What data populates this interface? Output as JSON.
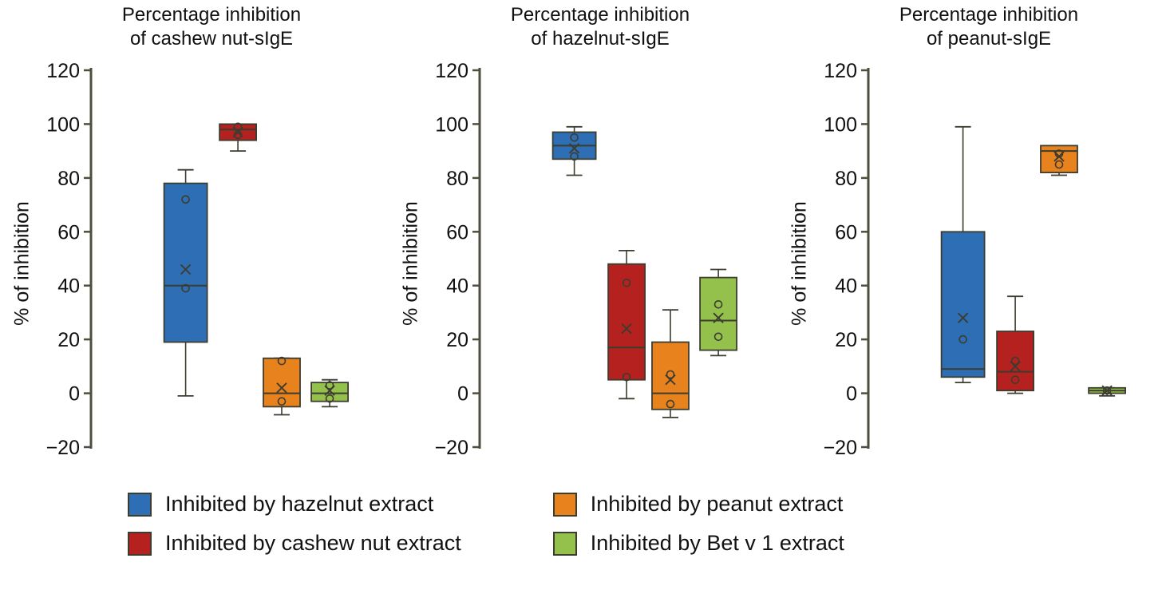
{
  "colors": {
    "axis": "#4e4e3e",
    "box_stroke": "#3c3c30",
    "marker": "#3c3c30",
    "tick_text": "#111111"
  },
  "legend": {
    "items": [
      {
        "label": "Inhibited by hazelnut extract",
        "color": "#2d6eb5"
      },
      {
        "label": "Inhibited by peanut extract",
        "color": "#e8821d"
      },
      {
        "label": "Inhibited by cashew nut extract",
        "color": "#b5211f"
      },
      {
        "label": "Inhibited by Bet v 1 extract",
        "color": "#94c14c"
      }
    ]
  },
  "chart_data": [
    {
      "type": "boxplot",
      "title": "Percentage inhibition of cashew nut-sIgE",
      "title_lines": [
        "Percentage inhibition",
        "of cashew nut-sIgE"
      ],
      "ylabel": "% of inhibition",
      "ylim": [
        -20,
        120
      ],
      "yticks": [
        120,
        100,
        80,
        60,
        40,
        20,
        0,
        -20
      ],
      "grid": false,
      "groups": [
        {
          "name": "hazelnut extract",
          "color": "#2d6eb5",
          "low": -1,
          "q1": 19,
          "median": 40,
          "q3": 78,
          "high": 83,
          "mean": 46,
          "points": [
            72,
            39
          ]
        },
        {
          "name": "cashew nut extract",
          "color": "#b5211f",
          "low": 90,
          "q1": 94,
          "median": 98,
          "q3": 100,
          "high": 100,
          "mean": 97,
          "points": [
            99,
            96
          ]
        },
        {
          "name": "peanut extract",
          "color": "#e8821d",
          "low": -8,
          "q1": -5,
          "median": 0,
          "q3": 13,
          "high": 13,
          "mean": 2,
          "points": [
            12,
            -3
          ]
        },
        {
          "name": "Bet v 1 extract",
          "color": "#94c14c",
          "low": -5,
          "q1": -3,
          "median": 0,
          "q3": 4,
          "high": 5,
          "mean": 1,
          "points": [
            3,
            -2
          ]
        }
      ]
    },
    {
      "type": "boxplot",
      "title": "Percentage inhibition of hazelnut-sIgE",
      "title_lines": [
        "Percentage inhibition",
        "of hazelnut-sIgE"
      ],
      "ylabel": "% of inhibition",
      "ylim": [
        -20,
        120
      ],
      "yticks": [
        120,
        100,
        80,
        60,
        40,
        20,
        0,
        -20
      ],
      "grid": false,
      "groups": [
        {
          "name": "hazelnut extract",
          "color": "#2d6eb5",
          "low": 81,
          "q1": 87,
          "median": 92,
          "q3": 97,
          "high": 99,
          "mean": 91,
          "points": [
            95,
            88
          ]
        },
        {
          "name": "cashew nut extract",
          "color": "#b5211f",
          "low": -2,
          "q1": 5,
          "median": 17,
          "q3": 48,
          "high": 53,
          "mean": 24,
          "points": [
            41,
            6
          ]
        },
        {
          "name": "peanut extract",
          "color": "#e8821d",
          "low": -9,
          "q1": -6,
          "median": 0,
          "q3": 19,
          "high": 31,
          "mean": 5,
          "points": [
            7,
            -4
          ]
        },
        {
          "name": "Bet v 1 extract",
          "color": "#94c14c",
          "low": 14,
          "q1": 16,
          "median": 27,
          "q3": 43,
          "high": 46,
          "mean": 28,
          "points": [
            33,
            21
          ]
        }
      ]
    },
    {
      "type": "boxplot",
      "title": "Percentage inhibition of peanut-sIgE",
      "title_lines": [
        "Percentage inhibition",
        "of peanut-sIgE"
      ],
      "ylabel": "% of inhibition",
      "ylim": [
        -20,
        120
      ],
      "yticks": [
        120,
        100,
        80,
        60,
        40,
        20,
        0,
        -20
      ],
      "grid": false,
      "groups": [
        {
          "name": "hazelnut extract",
          "color": "#2d6eb5",
          "low": 4,
          "q1": 6,
          "median": 9,
          "q3": 60,
          "high": 99,
          "mean": 28,
          "points": [
            20
          ]
        },
        {
          "name": "cashew nut extract",
          "color": "#b5211f",
          "low": 0,
          "q1": 1,
          "median": 8,
          "q3": 23,
          "high": 36,
          "mean": 10,
          "points": [
            12,
            5
          ]
        },
        {
          "name": "peanut extract",
          "color": "#e8821d",
          "low": 81,
          "q1": 82,
          "median": 90,
          "q3": 92,
          "high": 92,
          "mean": 88,
          "points": [
            89,
            85
          ]
        },
        {
          "name": "Bet v 1 extract",
          "color": "#94c14c",
          "low": -1,
          "q1": 0,
          "median": 1,
          "q3": 2,
          "high": 2,
          "mean": 1,
          "points": [
            1
          ]
        }
      ]
    }
  ]
}
